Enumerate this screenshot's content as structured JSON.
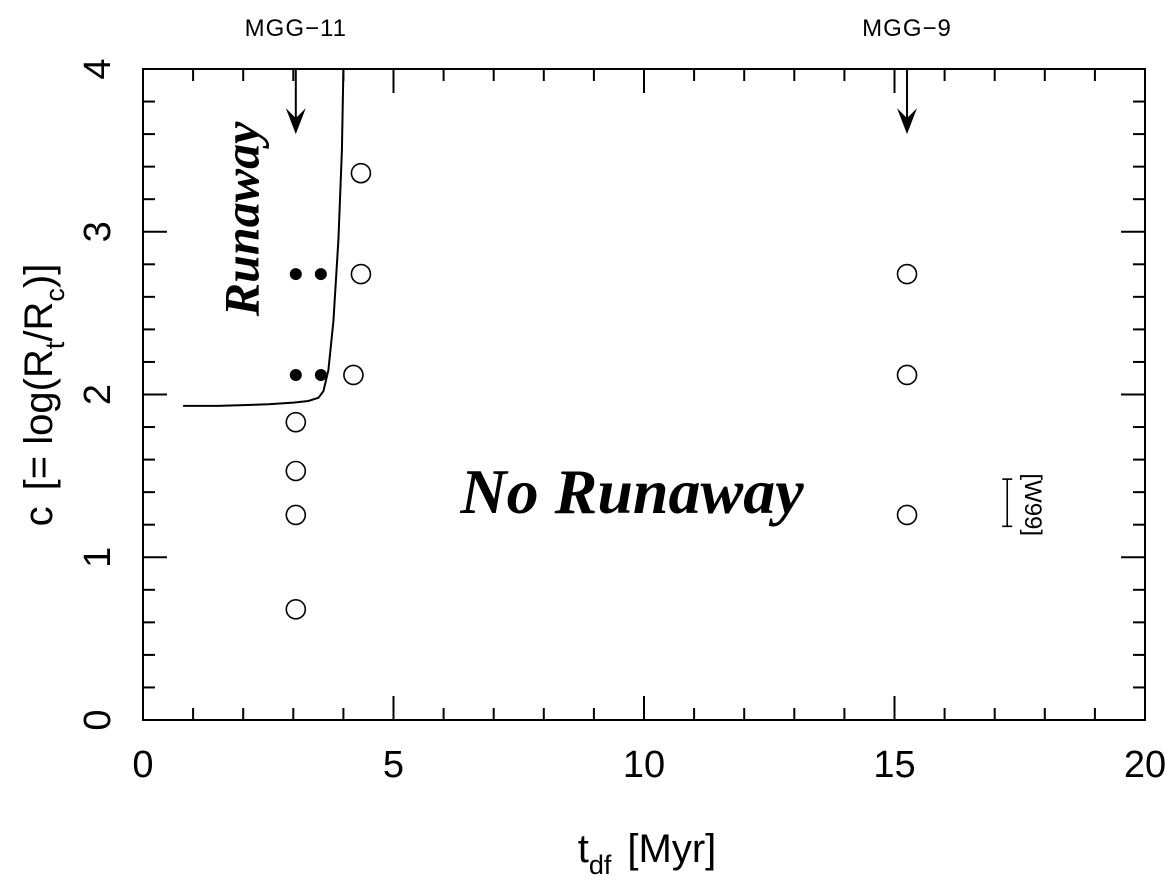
{
  "chart_data": {
    "type": "scatter",
    "title": "",
    "xlabel": {
      "main": "t",
      "sub": "df",
      "unit": "[Myr]"
    },
    "ylabel": {
      "prefix": "c",
      "eq_open": "[= log(R",
      "sub1": "t",
      "mid": "/R",
      "sub2": "c",
      "eq_close": ")]"
    },
    "xlim": [
      0,
      20
    ],
    "ylim": [
      0,
      4
    ],
    "xticks": [
      0,
      5,
      10,
      15,
      20
    ],
    "xtick_labels": [
      "0",
      "5",
      "10",
      "15",
      "20"
    ],
    "yticks": [
      0,
      1,
      2,
      3,
      4
    ],
    "ytick_labels": [
      "0",
      "1",
      "2",
      "3",
      "4"
    ],
    "minor_x_step": 1,
    "minor_y_step": 0.2,
    "grid": false,
    "series": [
      {
        "marker": "open-circle",
        "points": [
          {
            "x": 3.05,
            "y": 0.68
          },
          {
            "x": 3.05,
            "y": 1.26
          },
          {
            "x": 3.05,
            "y": 1.53
          },
          {
            "x": 3.05,
            "y": 1.83
          },
          {
            "x": 4.2,
            "y": 2.12
          },
          {
            "x": 4.35,
            "y": 2.74
          },
          {
            "x": 4.35,
            "y": 3.36
          },
          {
            "x": 15.25,
            "y": 1.26
          },
          {
            "x": 15.25,
            "y": 2.12
          },
          {
            "x": 15.25,
            "y": 2.74
          }
        ]
      },
      {
        "marker": "filled-circle",
        "points": [
          {
            "x": 3.05,
            "y": 2.12
          },
          {
            "x": 3.55,
            "y": 2.12
          },
          {
            "x": 3.05,
            "y": 2.74
          },
          {
            "x": 3.55,
            "y": 2.74
          }
        ]
      }
    ],
    "boundary_curve": {
      "x": [
        0.8,
        1.5,
        2.0,
        2.5,
        3.0,
        3.3,
        3.5,
        3.6,
        3.7,
        3.8,
        3.9,
        3.97,
        4.0
      ],
      "y": [
        1.93,
        1.93,
        1.935,
        1.94,
        1.95,
        1.96,
        1.98,
        2.02,
        2.15,
        2.45,
        2.95,
        3.5,
        4.0
      ]
    },
    "arrows": [
      {
        "label": "MGG−11",
        "x": 3.05,
        "y_from": 4.0,
        "y_to": 3.6
      },
      {
        "label": "MGG−9",
        "x": 15.25,
        "y_from": 4.0,
        "y_to": 3.6
      }
    ],
    "error_bar": {
      "x": 17.25,
      "y_low": 1.19,
      "y_high": 1.48,
      "label": "[W99]"
    },
    "region_labels": {
      "runaway": "Runaway",
      "no_runaway": "No Runaway"
    }
  }
}
